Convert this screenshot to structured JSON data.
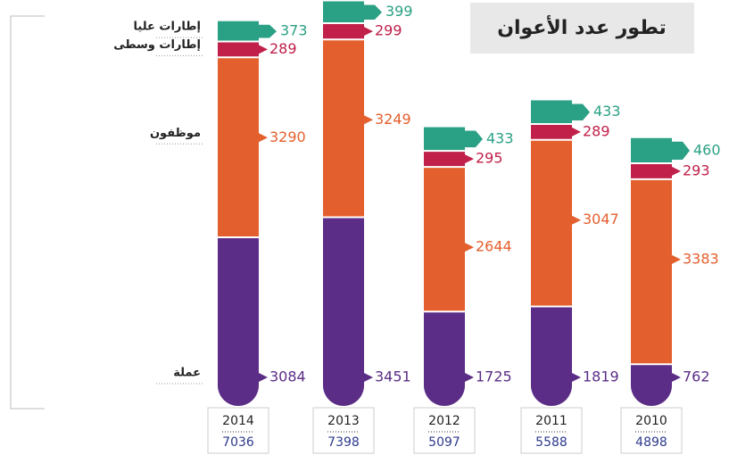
{
  "chart_data": {
    "type": "bar",
    "stacked": true,
    "title": "تطور عدد الأعوان",
    "categories": [
      "2014",
      "2013",
      "2012",
      "2011",
      "2010"
    ],
    "totals": [
      7036,
      7398,
      5097,
      5588,
      4898
    ],
    "series": [
      {
        "name": "عملة",
        "color": "#5b2d86",
        "values": [
          3084,
          3451,
          1725,
          1819,
          762
        ]
      },
      {
        "name": "موظفون",
        "color": "#e45f2e",
        "values": [
          3290,
          3249,
          2644,
          3047,
          3383
        ]
      },
      {
        "name": "إطارات وسطى",
        "color": "#c0204a",
        "values": [
          289,
          299,
          295,
          289,
          293
        ]
      },
      {
        "name": "إطارات عليا",
        "color": "#2aa084",
        "values": [
          373,
          399,
          433,
          433,
          460
        ]
      }
    ]
  }
}
